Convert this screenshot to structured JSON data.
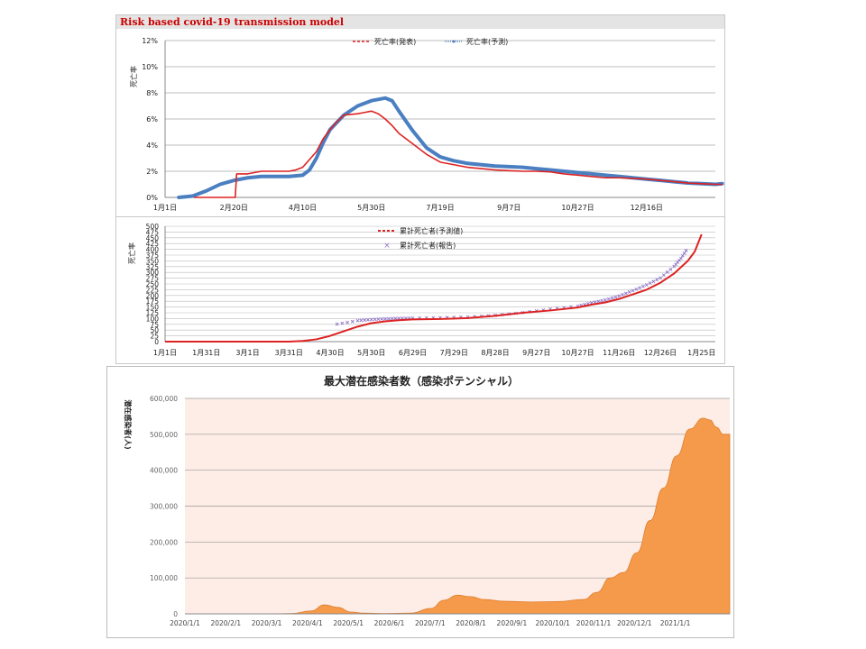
{
  "colors": {
    "red": "#dd2222",
    "blue": "#4a7fc1",
    "purple": "#8f74c8",
    "orange": "#f59a4a",
    "orange_bg": "#fdede6"
  },
  "chart_data": [
    {
      "type": "line",
      "title": "Risk based covid-19 transmission model",
      "ylabel": "死亡率",
      "ylim": [
        0,
        12
      ],
      "y_ticks": [
        "0%",
        "2%",
        "4%",
        "6%",
        "8%",
        "10%",
        "12%"
      ],
      "x_ticks": [
        "1月1日",
        "2月20日",
        "4月10日",
        "5月30日",
        "7月19日",
        "9月7日",
        "10月27日",
        "12月16日"
      ],
      "legend_position": "top",
      "grid": true,
      "series": [
        {
          "name": "死亡率(発表)",
          "x": [
            21,
            51,
            52,
            60,
            70,
            80,
            90,
            95,
            100,
            110,
            115,
            120,
            125,
            130,
            140,
            145,
            150,
            155,
            160,
            165,
            170,
            180,
            190,
            200,
            210,
            220,
            230,
            240,
            250,
            260,
            270,
            280,
            290,
            300,
            310,
            320,
            330,
            340,
            350,
            360,
            370,
            380,
            390,
            400,
            405
          ],
          "values": [
            0,
            0,
            1.8,
            1.8,
            2.0,
            2.0,
            2.0,
            2.1,
            2.3,
            3.5,
            4.5,
            5.2,
            5.8,
            6.3,
            6.4,
            6.5,
            6.6,
            6.4,
            6.0,
            5.5,
            4.9,
            4.1,
            3.3,
            2.7,
            2.5,
            2.3,
            2.2,
            2.1,
            2.05,
            2.0,
            2.0,
            1.95,
            1.8,
            1.7,
            1.6,
            1.5,
            1.5,
            1.45,
            1.4,
            1.3,
            1.2,
            1.1,
            1.05,
            1.0,
            1.0
          ]
        },
        {
          "name": "死亡率(予測)",
          "x": [
            10,
            20,
            30,
            40,
            50,
            60,
            70,
            80,
            90,
            100,
            105,
            110,
            115,
            120,
            130,
            140,
            150,
            160,
            165,
            170,
            180,
            190,
            200,
            210,
            220,
            230,
            240,
            250,
            260,
            270,
            280,
            290,
            300,
            310,
            320,
            330,
            340,
            350,
            360,
            370,
            380,
            390,
            400,
            405
          ],
          "values": [
            0,
            0.1,
            0.5,
            1.0,
            1.3,
            1.5,
            1.6,
            1.6,
            1.6,
            1.7,
            2.1,
            3.0,
            4.2,
            5.2,
            6.3,
            7.0,
            7.4,
            7.6,
            7.4,
            6.6,
            5.1,
            3.8,
            3.1,
            2.8,
            2.6,
            2.5,
            2.4,
            2.35,
            2.3,
            2.2,
            2.1,
            2.0,
            1.9,
            1.8,
            1.7,
            1.6,
            1.5,
            1.4,
            1.3,
            1.2,
            1.1,
            1.05,
            1.0,
            1.05
          ]
        }
      ]
    },
    {
      "type": "line",
      "ylabel": "死亡率",
      "ylim": [
        0,
        500
      ],
      "y_ticks": [
        "0",
        "25",
        "50",
        "75",
        "100",
        "125",
        "150",
        "175",
        "200",
        "225",
        "250",
        "275",
        "300",
        "325",
        "350",
        "375",
        "400",
        "425",
        "450",
        "475",
        "500"
      ],
      "x_ticks": [
        "1月1日",
        "1月31日",
        "3月1日",
        "3月31日",
        "4月30日",
        "5月30日",
        "6月29日",
        "7月29日",
        "8月28日",
        "9月27日",
        "10月27日",
        "11月26日",
        "12月26日",
        "1月25日"
      ],
      "legend_position": "top",
      "grid": true,
      "series": [
        {
          "name": "累計死亡者(予測値)",
          "x": [
            0,
            60,
            90,
            100,
            110,
            120,
            130,
            140,
            150,
            160,
            170,
            180,
            200,
            220,
            240,
            260,
            280,
            300,
            310,
            320,
            330,
            340,
            350,
            360,
            370,
            380,
            385,
            390
          ],
          "values": [
            0,
            0,
            0,
            3,
            10,
            25,
            45,
            65,
            80,
            88,
            93,
            96,
            98,
            102,
            112,
            125,
            135,
            148,
            160,
            170,
            185,
            205,
            225,
            255,
            295,
            350,
            390,
            465
          ]
        },
        {
          "name": "累計死亡者(報告)",
          "x": [
            125,
            140,
            150,
            160,
            170,
            180,
            200,
            220,
            240,
            260,
            280,
            300,
            310,
            320,
            330,
            340,
            350,
            360,
            370,
            375,
            380
          ],
          "values": [
            70,
            85,
            90,
            93,
            95,
            96,
            98,
            101,
            108,
            120,
            135,
            148,
            162,
            175,
            192,
            215,
            240,
            270,
            320,
            355,
            400
          ]
        }
      ]
    },
    {
      "type": "area",
      "title": "最大潜在感染者数（感染ポテンシャル）",
      "ylabel": "潜在感染者(人)",
      "ylim": [
        0,
        600000
      ],
      "y_ticks": [
        "0",
        "100,000",
        "200,000",
        "300,000",
        "400,000",
        "500,000",
        "600,000"
      ],
      "x_ticks": [
        "2020/1/1",
        "2020/2/1",
        "2020/3/1",
        "2020/4/1",
        "2020/5/1",
        "2020/6/1",
        "2020/7/1",
        "2020/8/1",
        "2020/9/1",
        "2020/10/1",
        "2020/11/1",
        "2020/12/1",
        "2021/1/1"
      ],
      "grid": true,
      "series": [
        {
          "name": "最大潜在感染者数",
          "x": [
            0,
            60,
            80,
            95,
            105,
            115,
            125,
            135,
            150,
            170,
            185,
            195,
            205,
            215,
            225,
            240,
            260,
            280,
            300,
            310,
            320,
            330,
            340,
            350,
            360,
            370,
            380,
            390,
            395,
            400,
            405,
            410
          ],
          "values": [
            0,
            0,
            800,
            8000,
            25000,
            18000,
            5000,
            2000,
            1000,
            2000,
            15000,
            38000,
            52000,
            48000,
            40000,
            35000,
            33000,
            34000,
            40000,
            60000,
            100000,
            115000,
            170000,
            260000,
            350000,
            440000,
            515000,
            545000,
            540000,
            520000,
            500000,
            500000
          ]
        }
      ]
    }
  ]
}
